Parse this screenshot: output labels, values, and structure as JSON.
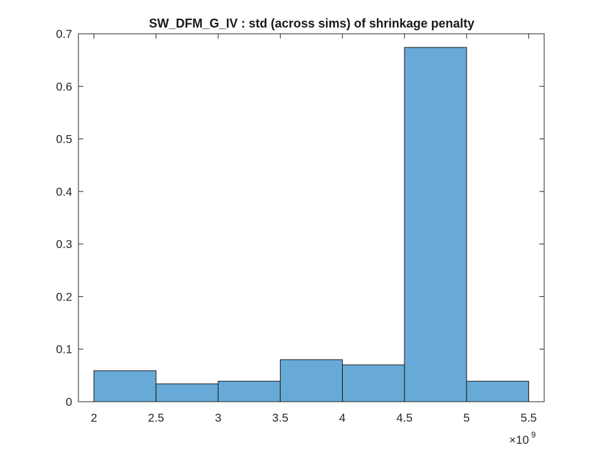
{
  "chart_data": {
    "type": "bar",
    "title": "SW_DFM_G_IV : std (across sims) of shrinkage penalty",
    "xlabel": "",
    "ylabel": "",
    "bin_edges": [
      2.0,
      2.5,
      3.0,
      3.5,
      4.0,
      4.5,
      5.0,
      5.5
    ],
    "values": [
      0.059,
      0.034,
      0.039,
      0.08,
      0.07,
      0.674,
      0.039
    ],
    "xlim": [
      1.875,
      5.625
    ],
    "ylim": [
      0,
      0.7
    ],
    "x_ticks": [
      2,
      2.5,
      3,
      3.5,
      4,
      4.5,
      5,
      5.5
    ],
    "x_tick_labels": [
      "2",
      "2.5",
      "3",
      "3.5",
      "4",
      "4.5",
      "5",
      "5.5"
    ],
    "y_ticks": [
      0,
      0.1,
      0.2,
      0.3,
      0.4,
      0.5,
      0.6,
      0.7
    ],
    "y_tick_labels": [
      "0",
      "0.1",
      "0.2",
      "0.3",
      "0.4",
      "0.5",
      "0.6",
      "0.7"
    ],
    "x_exponent_base": "×10",
    "x_exponent_power": "9",
    "bar_color": "#67aad8",
    "bar_edge_color": "#1a1a1a",
    "grid": false,
    "legend": "none"
  }
}
